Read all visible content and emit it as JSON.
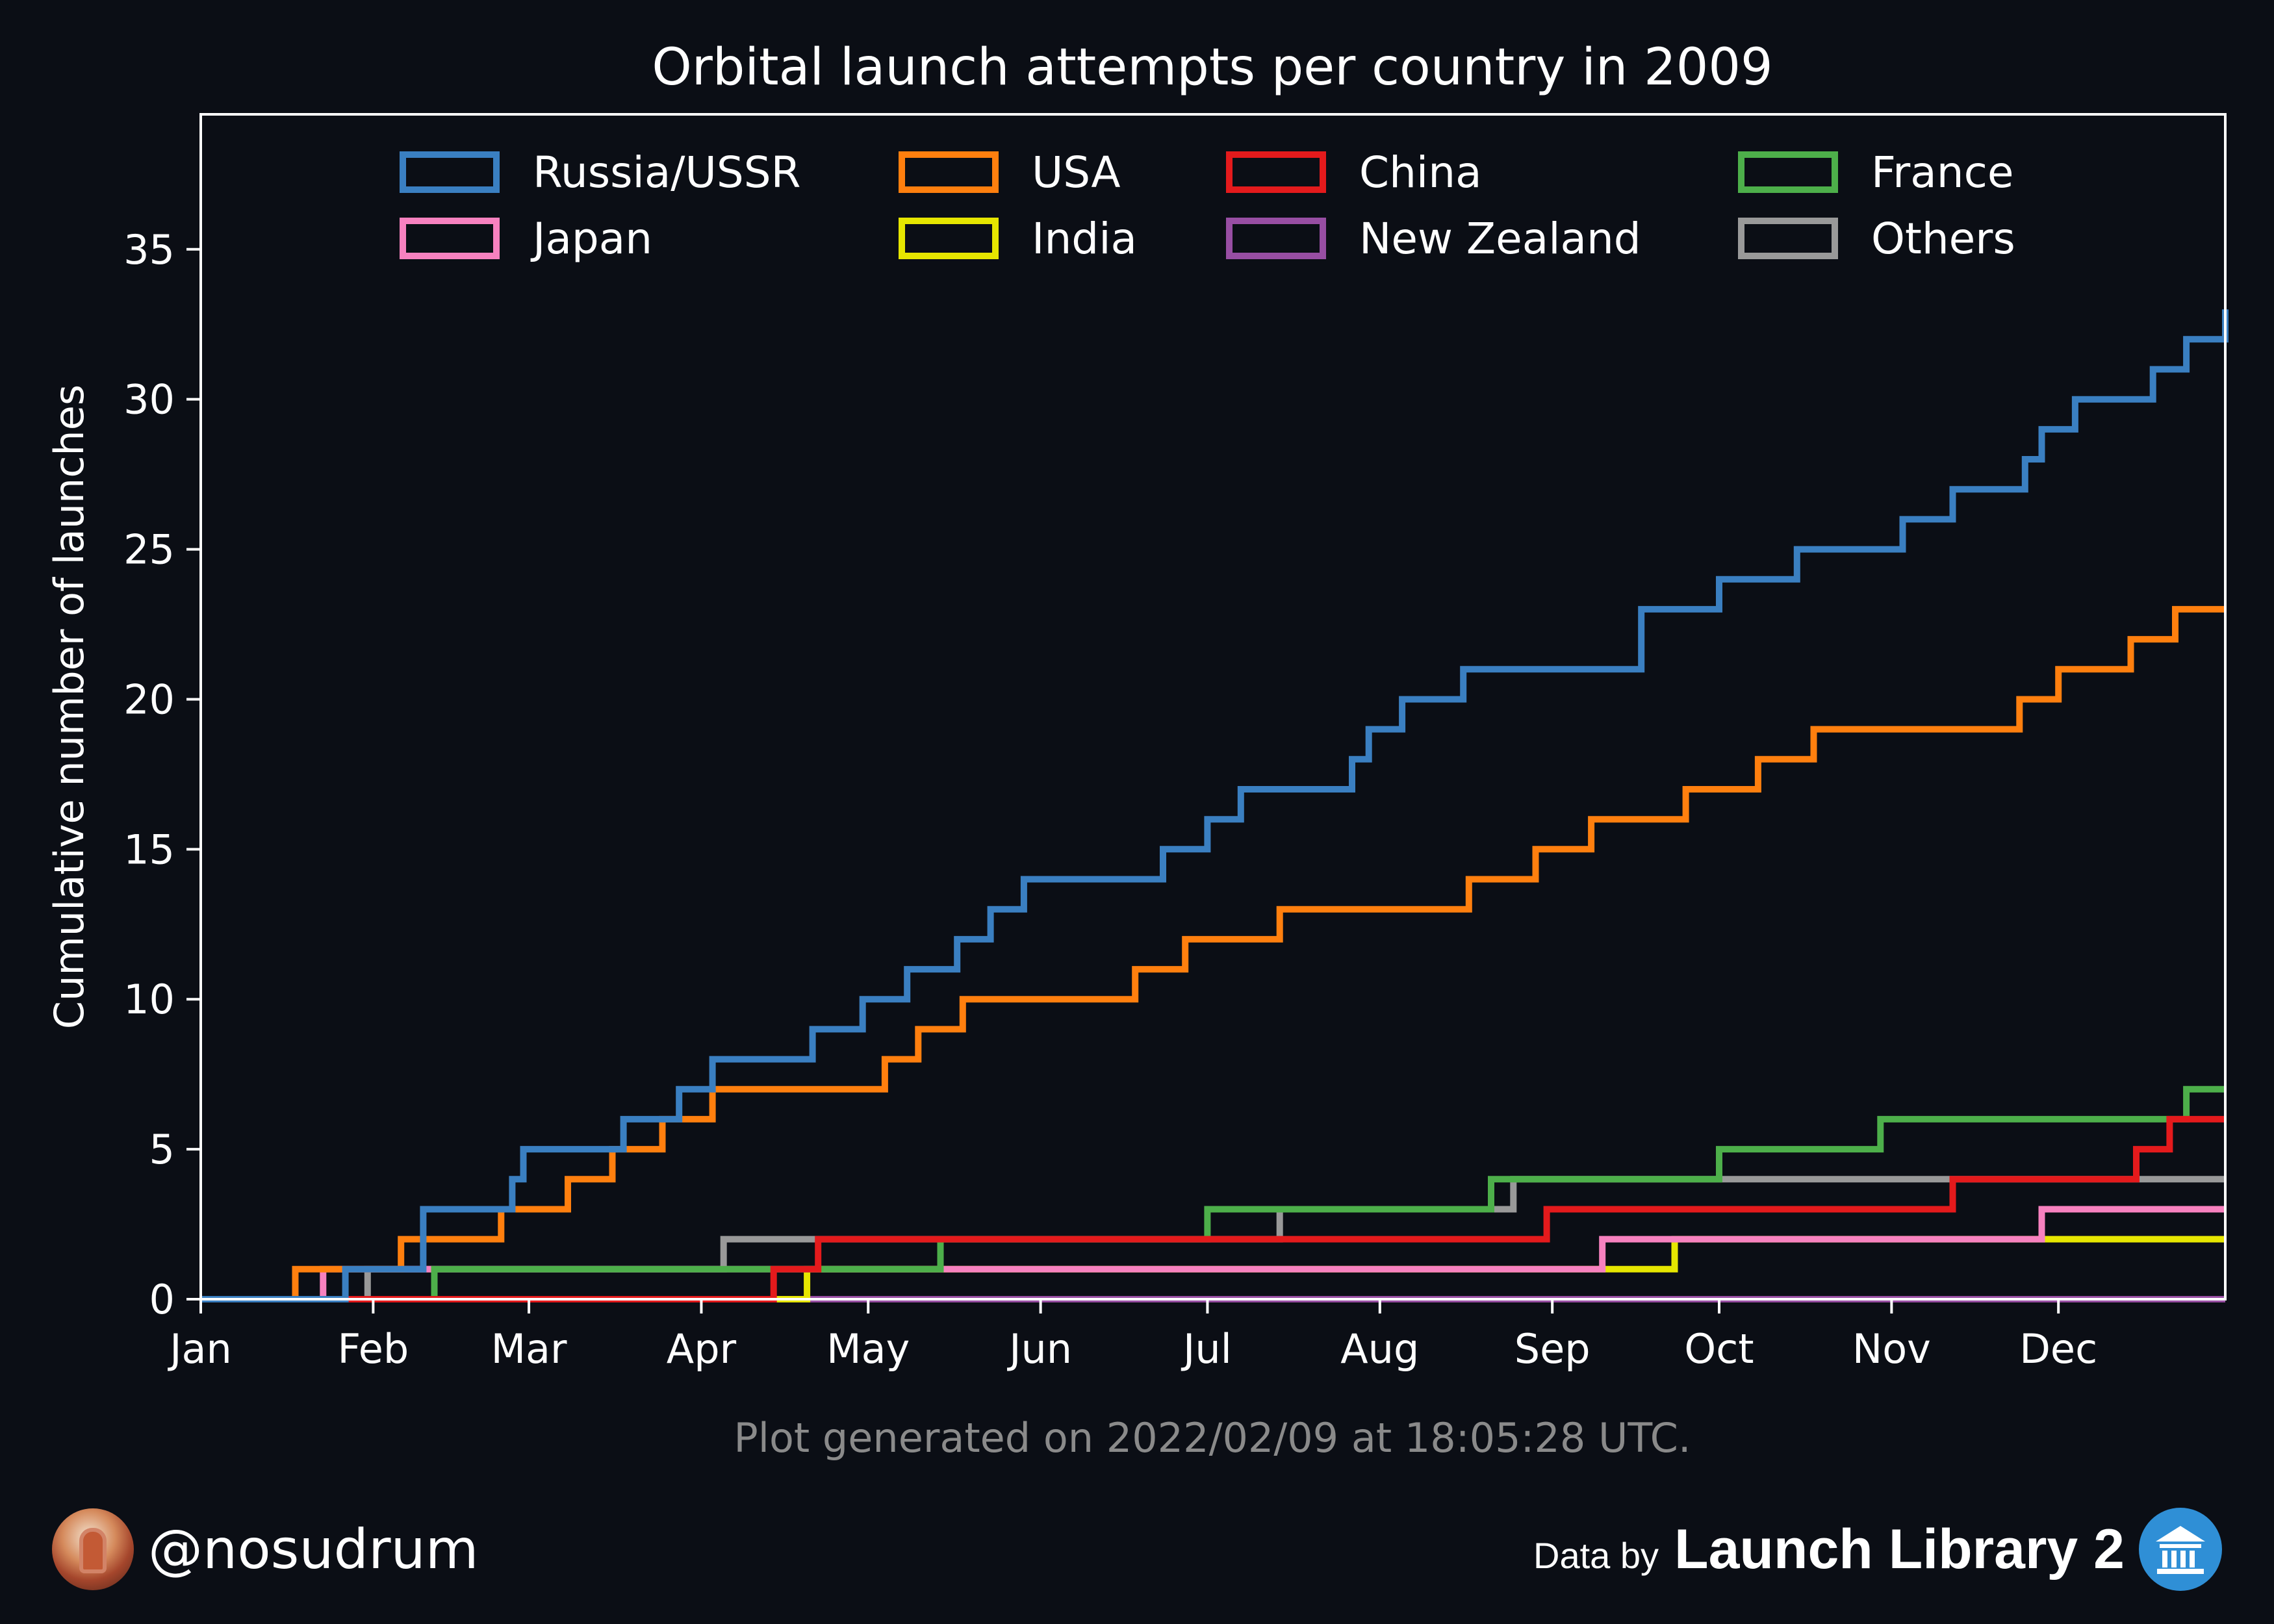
{
  "chart_data": {
    "type": "line",
    "step": true,
    "title": "Orbital launch attempts per country in 2009",
    "xlabel": "",
    "ylabel": "Cumulative number of launches",
    "x_range": [
      "2009-01-01",
      "2009-12-31"
    ],
    "ylim": [
      0,
      39.5
    ],
    "xticks": [
      "Jan",
      "Feb",
      "Mar",
      "Apr",
      "May",
      "Jun",
      "Jul",
      "Aug",
      "Sep",
      "Oct",
      "Nov",
      "Dec"
    ],
    "yticks": [
      0,
      5,
      10,
      15,
      20,
      25,
      30,
      35
    ],
    "grid": false,
    "legend_position": "top",
    "series": [
      {
        "name": "Russia/USSR",
        "color": "#3a7fc1",
        "steps": [
          [
            "2009-01-27",
            1
          ],
          [
            "2009-02-10",
            3
          ],
          [
            "2009-02-26",
            4
          ],
          [
            "2009-02-28",
            5
          ],
          [
            "2009-03-18",
            6
          ],
          [
            "2009-03-28",
            7
          ],
          [
            "2009-04-03",
            8
          ],
          [
            "2009-04-21",
            9
          ],
          [
            "2009-04-30",
            10
          ],
          [
            "2009-05-08",
            11
          ],
          [
            "2009-05-17",
            12
          ],
          [
            "2009-05-23",
            13
          ],
          [
            "2009-05-29",
            14
          ],
          [
            "2009-06-23",
            15
          ],
          [
            "2009-07-01",
            16
          ],
          [
            "2009-07-07",
            17
          ],
          [
            "2009-07-27",
            18
          ],
          [
            "2009-07-30",
            19
          ],
          [
            "2009-08-05",
            20
          ],
          [
            "2009-08-16",
            21
          ],
          [
            "2009-09-17",
            23
          ],
          [
            "2009-10-01",
            24
          ],
          [
            "2009-10-15",
            25
          ],
          [
            "2009-11-03",
            26
          ],
          [
            "2009-11-12",
            27
          ],
          [
            "2009-11-25",
            28
          ],
          [
            "2009-11-28",
            29
          ],
          [
            "2009-12-04",
            30
          ],
          [
            "2009-12-18",
            31
          ],
          [
            "2009-12-24",
            32
          ],
          [
            "2009-12-31",
            33
          ]
        ]
      },
      {
        "name": "USA",
        "color": "#ff7f0e",
        "steps": [
          [
            "2009-01-18",
            1
          ],
          [
            "2009-02-06",
            2
          ],
          [
            "2009-02-24",
            3
          ],
          [
            "2009-03-08",
            4
          ],
          [
            "2009-03-16",
            5
          ],
          [
            "2009-03-25",
            6
          ],
          [
            "2009-04-03",
            7
          ],
          [
            "2009-05-04",
            8
          ],
          [
            "2009-05-10",
            9
          ],
          [
            "2009-05-18",
            10
          ],
          [
            "2009-06-18",
            11
          ],
          [
            "2009-06-27",
            12
          ],
          [
            "2009-07-14",
            13
          ],
          [
            "2009-08-17",
            14
          ],
          [
            "2009-08-29",
            15
          ],
          [
            "2009-09-08",
            16
          ],
          [
            "2009-09-25",
            17
          ],
          [
            "2009-10-08",
            18
          ],
          [
            "2009-10-18",
            19
          ],
          [
            "2009-11-24",
            20
          ],
          [
            "2009-12-01",
            21
          ],
          [
            "2009-12-14",
            22
          ],
          [
            "2009-12-22",
            23
          ]
        ]
      },
      {
        "name": "China",
        "color": "#e41a1c",
        "steps": [
          [
            "2009-04-14",
            1
          ],
          [
            "2009-04-22",
            2
          ],
          [
            "2009-08-31",
            3
          ],
          [
            "2009-11-12",
            4
          ],
          [
            "2009-12-15",
            5
          ],
          [
            "2009-12-21",
            6
          ]
        ]
      },
      {
        "name": "France",
        "color": "#4daf4a",
        "steps": [
          [
            "2009-02-12",
            1
          ],
          [
            "2009-05-14",
            2
          ],
          [
            "2009-07-01",
            3
          ],
          [
            "2009-08-21",
            4
          ],
          [
            "2009-10-01",
            5
          ],
          [
            "2009-10-30",
            6
          ],
          [
            "2009-12-24",
            7
          ]
        ]
      },
      {
        "name": "Japan",
        "color": "#f781bf",
        "steps": [
          [
            "2009-01-23",
            1
          ],
          [
            "2009-09-10",
            2
          ],
          [
            "2009-11-28",
            3
          ]
        ]
      },
      {
        "name": "India",
        "color": "#e6e600",
        "steps": [
          [
            "2009-04-20",
            1
          ],
          [
            "2009-09-23",
            2
          ]
        ]
      },
      {
        "name": "New Zealand",
        "color": "#984ea3",
        "steps": []
      },
      {
        "name": "Others",
        "color": "#999999",
        "steps": [
          [
            "2009-01-31",
            1
          ],
          [
            "2009-04-05",
            2
          ],
          [
            "2009-07-14",
            3
          ],
          [
            "2009-08-25",
            4
          ]
        ]
      }
    ]
  },
  "footer": {
    "note": "Plot generated on 2022/02/09 at 18:05:28 UTC.",
    "handle": "@nosudrum",
    "credit_prefix": "Data by",
    "credit_brand": "Launch Library 2",
    "avatar_icon": "astronaut-avatar-icon",
    "brand_icon": "library-building-icon"
  }
}
